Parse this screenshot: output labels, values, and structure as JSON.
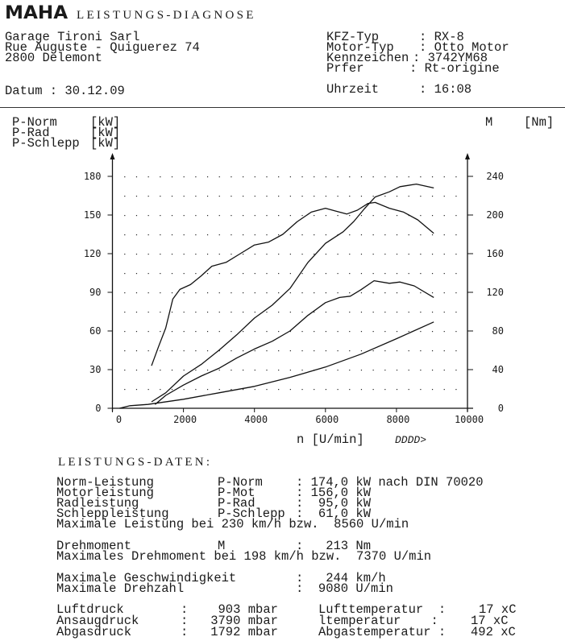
{
  "header": {
    "logo": "MAHA",
    "title": "LEISTUNGS-DIAGNOSE",
    "address": [
      "Garage Tironi Sarl",
      "Rue Auguste - Quiguerez 74",
      "2800 Delemont"
    ],
    "vehicle": [
      {
        "label": "KFZ-Typ",
        "value": ": RX-8"
      },
      {
        "label": "Motor-Typ",
        "value": ": Otto Motor"
      },
      {
        "label": "Kennzeichen",
        "value": ": 3742YM68"
      },
      {
        "label": "Prfer",
        "value": ": Rt-origine"
      }
    ],
    "date_label": "Datum : 30.12.09",
    "time_label": "Uhrzeit",
    "time_value": ": 16:08"
  },
  "legend": {
    "left": [
      {
        "name": "P-Norm",
        "unit": "[kW]"
      },
      {
        "name": "P-Rad",
        "unit": "[kW]"
      },
      {
        "name": "P-Schlepp",
        "unit": "[kW]"
      }
    ],
    "right": {
      "name": "M",
      "unit": "[Nm]"
    }
  },
  "chart_data": {
    "type": "line",
    "xlabel": "n [U/min]",
    "xlabel_suffix": "DDDD>",
    "ylabel_left": "P [kW]",
    "ylabel_right": "M [Nm]",
    "xlim": [
      0,
      10000
    ],
    "ylim_left": [
      0,
      180
    ],
    "ylim_right": [
      0,
      240
    ],
    "x_ticks": [
      "0",
      "2000",
      "4000",
      "6000",
      "8000",
      "10000"
    ],
    "y_ticks_left": [
      "0",
      "30",
      "60",
      "90",
      "120",
      "150",
      "180"
    ],
    "y_ticks_right": [
      "0",
      "40",
      "80",
      "120",
      "160",
      "200",
      "240"
    ],
    "grid": "dotted",
    "series": [
      {
        "name": "M",
        "axis": "right",
        "x": [
          1100,
          1300,
          1500,
          1700,
          1900,
          2200,
          2500,
          2800,
          3200,
          3600,
          4000,
          4400,
          4800,
          5200,
          5600,
          6000,
          6300,
          6600,
          6900,
          7200,
          7400,
          7800,
          8200,
          8600,
          9050
        ],
        "y": [
          44,
          64,
          83,
          113,
          123,
          128,
          137,
          147,
          151,
          160,
          169,
          172,
          180,
          193,
          203,
          207,
          204,
          201,
          205,
          212,
          213,
          207,
          203,
          195,
          181
        ]
      },
      {
        "name": "P-Norm",
        "axis": "left",
        "x": [
          1100,
          1500,
          2000,
          2500,
          3000,
          3500,
          4000,
          4500,
          5000,
          5500,
          6000,
          6500,
          6800,
          7100,
          7400,
          7800,
          8100,
          8560,
          9050
        ],
        "y": [
          5,
          12,
          25,
          34,
          45,
          57,
          70,
          80,
          93,
          113,
          128,
          137,
          145,
          155,
          164,
          168,
          172,
          174,
          171
        ]
      },
      {
        "name": "P-Rad",
        "axis": "left",
        "x": [
          1200,
          1500,
          2000,
          2500,
          3000,
          3500,
          4000,
          4500,
          5000,
          5500,
          6000,
          6400,
          6700,
          7000,
          7370,
          7800,
          8100,
          8500,
          9050
        ],
        "y": [
          3,
          10,
          18,
          25,
          31,
          39,
          46,
          52,
          60,
          72,
          82,
          86,
          87,
          92,
          99,
          97,
          98,
          95,
          86
        ]
      },
      {
        "name": "P-Schlepp",
        "axis": "left",
        "x": [
          200,
          500,
          1000,
          2000,
          3000,
          4000,
          5000,
          6000,
          7000,
          8000,
          9050
        ],
        "y": [
          0,
          2,
          3,
          7,
          12,
          17,
          24,
          32,
          42,
          54,
          67
        ]
      }
    ]
  },
  "data_section": {
    "title": "LEISTUNGS-DATEN:",
    "power": [
      {
        "label": "Norm-Leistung",
        "symbol": "P-Norm",
        "value": ": 174,0 kW nach DIN 70020"
      },
      {
        "label": "Motorleistung",
        "symbol": "P-Mot",
        "value": ": 156,0 kW"
      },
      {
        "label": "Radleistung",
        "symbol": "P-Rad",
        "value": ":  95,0 kW"
      },
      {
        "label": "Schleppleistung",
        "symbol": "P-Schlepp",
        "value": ":  61,0 kW"
      }
    ],
    "max_power": "Maximale Leistung bei 230 km/h bzw.  8560 U/min",
    "torque": {
      "label": "Drehmoment",
      "symbol": "M",
      "value": ":   213 Nm"
    },
    "max_torque": "Maximales Drehmoment bei 198 km/h bzw.  7370 U/min",
    "max_speed": {
      "label": "Maximale Geschwindigkeit",
      "value": ":   244 km/h"
    },
    "max_rpm": {
      "label": "Maximale Drehzahl",
      "value": ":  9080 U/min"
    },
    "pressures": [
      {
        "label": "Luftdruck",
        "value": ":    903 mbar"
      },
      {
        "label": "Ansaugdruck",
        "value": ":   3790 mbar"
      },
      {
        "label": "Abgasdruck",
        "value": ":   1792 mbar"
      }
    ],
    "temperatures": [
      {
        "label": "Lufttemperatur  :",
        "value": "17 xC"
      },
      {
        "label": "ltemperatur    :",
        "value": "17 xC"
      },
      {
        "label": "Abgastemperatur :",
        "value": "492 xC"
      }
    ]
  }
}
